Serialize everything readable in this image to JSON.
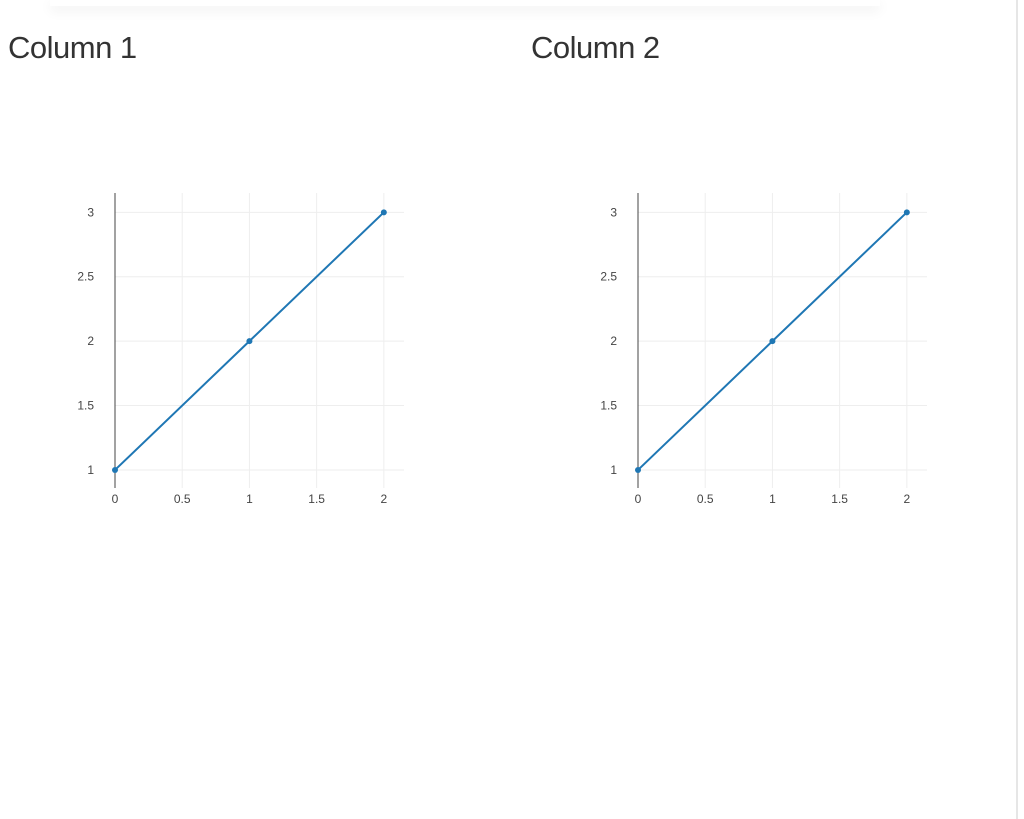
{
  "chart_data": [
    {
      "type": "line",
      "title": "Column 1",
      "x": [
        0,
        1,
        2
      ],
      "series": [
        {
          "color": "#1f77b4",
          "values": [
            1,
            2,
            3
          ]
        }
      ],
      "xlim": [
        0,
        2.15
      ],
      "xticks": [
        0,
        0.5,
        1,
        1.5,
        2
      ],
      "ylim": [
        0.86,
        3.15
      ],
      "yticks": [
        1,
        1.5,
        2,
        2.5,
        3
      ],
      "grid": true
    },
    {
      "type": "line",
      "title": "Column 2",
      "x": [
        0,
        1,
        2
      ],
      "series": [
        {
          "color": "#1f77b4",
          "values": [
            1,
            2,
            3
          ]
        }
      ],
      "xlim": [
        0,
        2.15
      ],
      "xticks": [
        0,
        0.5,
        1,
        1.5,
        2
      ],
      "ylim": [
        0.86,
        3.15
      ],
      "yticks": [
        1,
        1.5,
        2,
        2.5,
        3
      ],
      "grid": true
    }
  ]
}
